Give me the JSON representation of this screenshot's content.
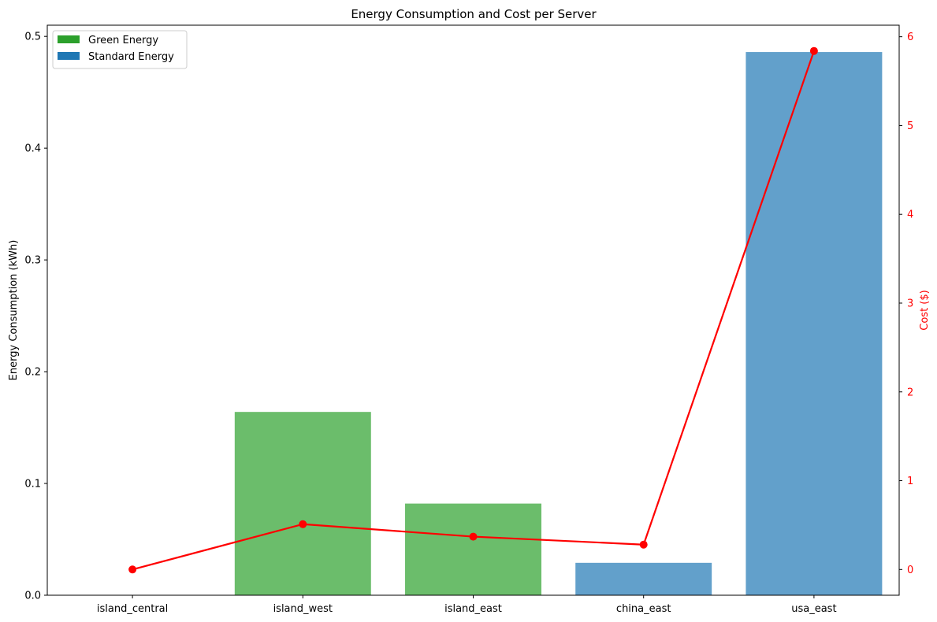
{
  "chart_data": {
    "type": "bar",
    "title": "Energy Consumption and Cost per Server",
    "categories": [
      "island_central",
      "island_west",
      "island_east",
      "china_east",
      "usa_east"
    ],
    "series": [
      {
        "name": "Energy Consumption",
        "axis": "left",
        "values": [
          0.0,
          0.164,
          0.082,
          0.029,
          0.486
        ],
        "bar_energy_type": [
          "Green Energy",
          "Green Energy",
          "Green Energy",
          "Standard Energy",
          "Standard Energy"
        ]
      },
      {
        "type": "line",
        "axis": "right",
        "values": [
          0.0,
          0.51,
          0.37,
          0.28,
          5.84
        ],
        "color": "#ff0000"
      }
    ],
    "legend": {
      "placement": "top-left",
      "entries": [
        {
          "label": "Green Energy",
          "color": "#2ca02c"
        },
        {
          "label": "Standard Energy",
          "color": "#1f77b4"
        }
      ]
    },
    "bar_colors": {
      "Green Energy": "#6bbd6b",
      "Standard Energy": "#62a0cb"
    },
    "left_axis": {
      "label": "Energy Consumption (kWh)",
      "ylim": [
        0,
        0.51
      ],
      "ticks": [
        0.0,
        0.1,
        0.2,
        0.3,
        0.4,
        0.5
      ],
      "tick_labels": [
        "0.0",
        "0.1",
        "0.2",
        "0.3",
        "0.4",
        "0.5"
      ],
      "color": "#000000"
    },
    "right_axis": {
      "label": "Cost ($)",
      "ylim": [
        -0.29,
        6.13
      ],
      "ticks": [
        0,
        1,
        2,
        3,
        4,
        5,
        6
      ],
      "tick_labels": [
        "0",
        "1",
        "2",
        "3",
        "4",
        "5",
        "6"
      ],
      "color": "#ff0000"
    },
    "grid": false
  }
}
